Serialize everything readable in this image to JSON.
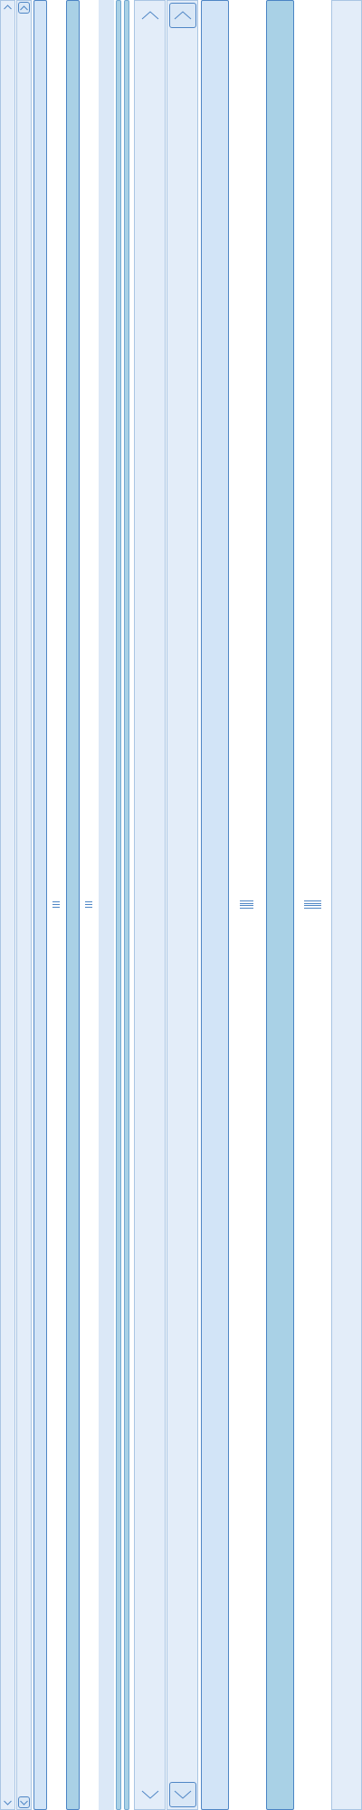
{
  "colors": {
    "track": "#dbe8f7",
    "thumb_light": "#d2e4f7",
    "thumb_dark": "#a9d1e6",
    "border": "#4f86c5"
  },
  "scrollbars": [
    {
      "name": "scrollbar-1",
      "style": "plain-arrows",
      "icons": [
        "chevron-up-icon",
        "chevron-down-icon"
      ]
    },
    {
      "name": "scrollbar-2",
      "style": "boxed-arrows",
      "icons": [
        "chevron-up-icon",
        "chevron-down-icon"
      ]
    },
    {
      "name": "scrollbar-3",
      "style": "thumb-only",
      "icons": [
        "grip-icon"
      ]
    },
    {
      "name": "scrollbar-4",
      "style": "thumb-dark",
      "icons": [
        "grip-icon"
      ]
    },
    {
      "name": "scrollbar-5",
      "style": "thin-rails",
      "icons": []
    },
    {
      "name": "scrollbar-6",
      "style": "plain-arrows-large",
      "icons": [
        "chevron-up-icon",
        "chevron-down-icon"
      ]
    },
    {
      "name": "scrollbar-7",
      "style": "boxed-arrows-large",
      "icons": [
        "chevron-up-icon",
        "chevron-down-icon"
      ]
    },
    {
      "name": "scrollbar-8",
      "style": "thumb-large",
      "icons": [
        "grip-icon"
      ]
    },
    {
      "name": "scrollbar-9",
      "style": "thumb-dark-large",
      "icons": [
        "grip-icon"
      ]
    },
    {
      "name": "scrollbar-10",
      "style": "track-only",
      "icons": []
    }
  ]
}
